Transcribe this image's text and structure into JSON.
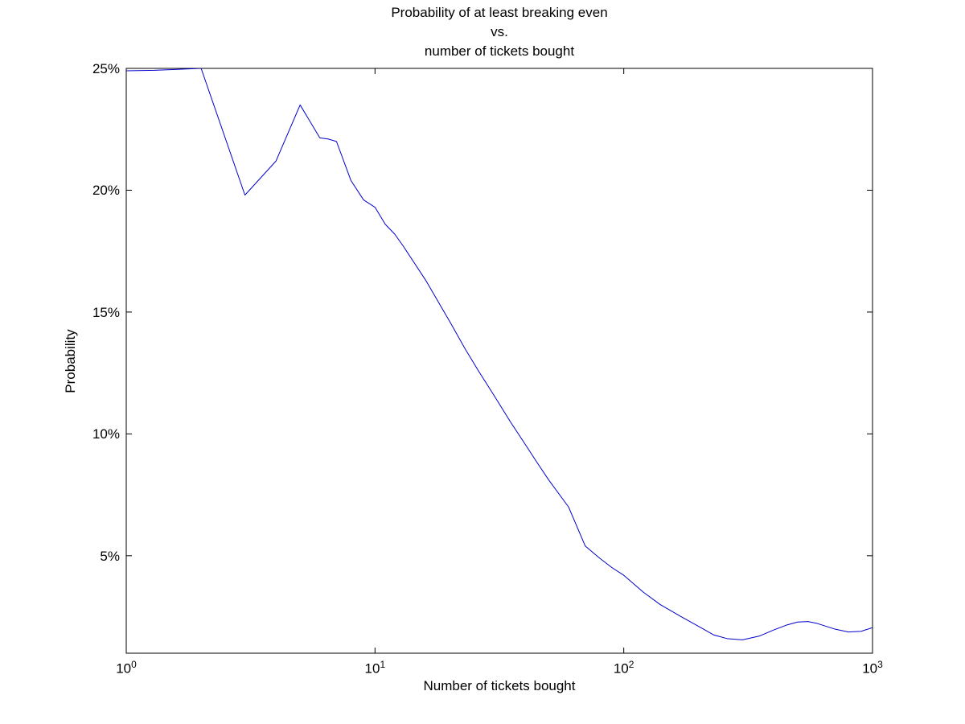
{
  "chart_data": {
    "type": "line",
    "title_lines": [
      "Probability of at least breaking even",
      "vs.",
      "number of tickets bought"
    ],
    "xlabel": "Number of tickets bought",
    "ylabel": "Probability",
    "x_scale": "log",
    "xlim": [
      1,
      1000
    ],
    "ylim": [
      1,
      25
    ],
    "grid": false,
    "legend": "none",
    "line_color": "#0000CD",
    "axis_color": "#000000",
    "x_ticks": [
      {
        "value": 1,
        "base": "10",
        "exp": "0"
      },
      {
        "value": 10,
        "base": "10",
        "exp": "1"
      },
      {
        "value": 100,
        "base": "10",
        "exp": "2"
      },
      {
        "value": 1000,
        "base": "10",
        "exp": "3"
      }
    ],
    "y_ticks": [
      {
        "value": 5,
        "label": "5%"
      },
      {
        "value": 10,
        "label": "10%"
      },
      {
        "value": 15,
        "label": "15%"
      },
      {
        "value": 20,
        "label": "20%"
      },
      {
        "value": 25,
        "label": "25%"
      }
    ],
    "series": [
      {
        "name": "Probability of at least breaking even",
        "x": [
          1,
          1.3,
          1.6,
          2,
          3,
          4,
          5,
          6,
          6.5,
          7,
          8,
          9,
          10,
          11,
          12,
          13,
          14,
          16,
          18,
          20,
          23,
          26,
          30,
          35,
          40,
          45,
          50,
          60,
          70,
          80,
          90,
          100,
          120,
          140,
          170,
          200,
          230,
          260,
          300,
          350,
          400,
          450,
          500,
          550,
          600,
          700,
          800,
          900,
          1000
        ],
        "y": [
          24.9,
          24.92,
          24.96,
          25.0,
          19.8,
          21.2,
          23.5,
          22.15,
          22.1,
          22.0,
          20.4,
          19.6,
          19.3,
          18.6,
          18.2,
          17.7,
          17.2,
          16.3,
          15.4,
          14.6,
          13.5,
          12.6,
          11.6,
          10.5,
          9.6,
          8.8,
          8.1,
          7.0,
          5.4,
          4.9,
          4.5,
          4.2,
          3.5,
          3.0,
          2.5,
          2.1,
          1.75,
          1.6,
          1.55,
          1.7,
          1.95,
          2.15,
          2.28,
          2.3,
          2.22,
          2.0,
          1.87,
          1.9,
          2.05
        ]
      }
    ]
  }
}
